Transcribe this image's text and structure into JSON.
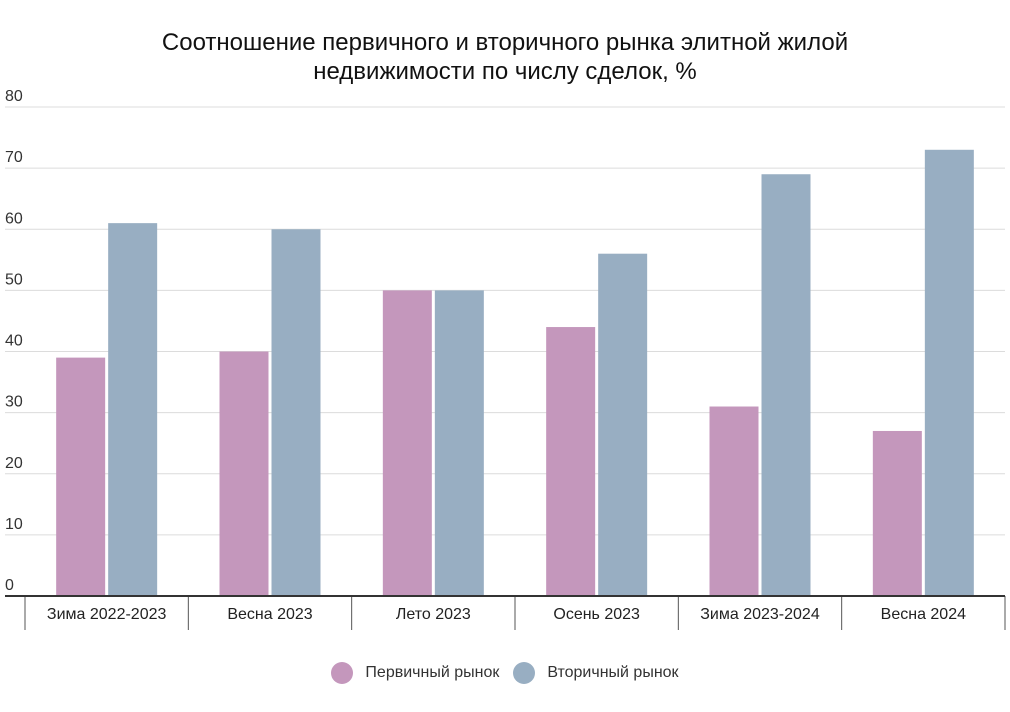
{
  "chart_data": {
    "type": "bar",
    "title_line1": "Соотношение первичного и вторичного рынка элитной жилой",
    "title_line2": "недвижимости по числу сделок, %",
    "categories": [
      "Зима 2022-2023",
      "Весна 2023",
      "Лето 2023",
      "Осень 2023",
      "Зима 2023-2024",
      "Весна 2024"
    ],
    "series": [
      {
        "name": "Первичный рынок",
        "color": "#c497bc",
        "values": [
          39,
          40,
          50,
          44,
          31,
          27
        ]
      },
      {
        "name": "Вторичный рынок",
        "color": "#98aec2",
        "values": [
          61,
          60,
          50,
          56,
          69,
          73
        ]
      }
    ],
    "ylim": [
      0,
      80
    ],
    "yticks": [
      0,
      10,
      20,
      30,
      40,
      50,
      60,
      70,
      80
    ],
    "grid": true,
    "legend": "bottom-center",
    "xlabel": "",
    "ylabel": ""
  }
}
